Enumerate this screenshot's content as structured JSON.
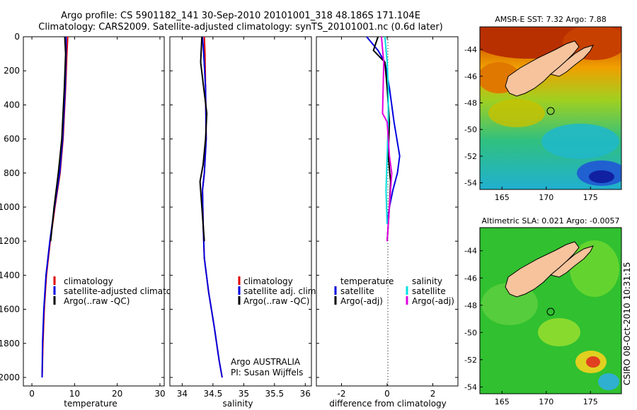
{
  "header": {
    "line1": "Argo profile: CS 5901182_141 30-Sep-2010 20101001_318 48.186S 171.104E",
    "line2": "Climatology: CARS2009. Satellite-adjusted climatology: synTS_20101001.nc (0.6d later)"
  },
  "chart_data": [
    {
      "type": "line",
      "id": "temperature",
      "xlabel": "temperature",
      "ylabel": "",
      "xlim": [
        -2,
        31
      ],
      "ylim": [
        0,
        2050
      ],
      "y_inverted": true,
      "xticks": [
        0,
        10,
        20,
        30
      ],
      "yticks": [
        0,
        200,
        400,
        600,
        800,
        1000,
        1200,
        1400,
        1600,
        1800,
        2000
      ],
      "legend": [
        "climatology",
        "satellite-adjusted climatology",
        "Argo(..raw -QC)"
      ],
      "series": [
        {
          "name": "climatology",
          "color": "#e00000",
          "x": [
            8.4,
            8.2,
            7.9,
            7.3,
            6.6,
            5.4,
            4.3,
            3.4,
            2.9,
            2.6,
            2.4
          ],
          "y": [
            0,
            100,
            300,
            600,
            800,
            1000,
            1200,
            1400,
            1600,
            1800,
            2000
          ]
        },
        {
          "name": "satellite-adjusted climatology",
          "color": "#0000e0",
          "x": [
            8.0,
            8.0,
            7.8,
            7.2,
            6.5,
            5.3,
            4.2,
            3.3,
            2.8,
            2.5,
            2.4
          ],
          "y": [
            0,
            100,
            300,
            600,
            800,
            1000,
            1200,
            1400,
            1600,
            1800,
            2000
          ]
        },
        {
          "name": "Argo(..raw -QC)",
          "color": "#000000",
          "x": [
            7.7,
            7.9,
            7.6,
            7.0,
            6.2,
            5.2,
            4.4
          ],
          "y": [
            0,
            100,
            300,
            600,
            800,
            1000,
            1200
          ]
        }
      ]
    },
    {
      "type": "line",
      "id": "salinity",
      "xlabel": "salinity",
      "ylabel": "",
      "xlim": [
        33.8,
        36.1
      ],
      "ylim": [
        0,
        2050
      ],
      "y_inverted": true,
      "xticks": [
        34,
        34.5,
        35,
        35.5,
        36
      ],
      "legend": [
        "climatology",
        "satellite adj. clim.",
        "Argo(..raw -QC)"
      ],
      "series": [
        {
          "name": "climatology",
          "color": "#e00000",
          "x": [
            34.36,
            34.37,
            34.38,
            34.39,
            34.36,
            34.33,
            34.34,
            34.36,
            34.43,
            34.52,
            34.6,
            34.65
          ],
          "y": [
            0,
            100,
            300,
            600,
            800,
            900,
            1100,
            1300,
            1500,
            1700,
            1900,
            2000
          ]
        },
        {
          "name": "satellite adj. clim.",
          "color": "#0000e0",
          "x": [
            34.33,
            34.35,
            34.38,
            34.39,
            34.36,
            34.33,
            34.34,
            34.36,
            34.43,
            34.52,
            34.6,
            34.65
          ],
          "y": [
            0,
            100,
            300,
            600,
            800,
            900,
            1100,
            1300,
            1500,
            1700,
            1900,
            2000
          ]
        },
        {
          "name": "Argo(..raw -QC)",
          "color": "#000000",
          "x": [
            34.32,
            34.3,
            34.35,
            34.4,
            34.38,
            34.34,
            34.29,
            34.32,
            34.36
          ],
          "y": [
            0,
            150,
            300,
            450,
            600,
            750,
            850,
            1000,
            1200
          ]
        }
      ],
      "annotations": [
        "Argo AUSTRALIA",
        "PI: Susan Wijffels"
      ]
    },
    {
      "type": "line",
      "id": "difference",
      "xlabel": "difference from climatology",
      "ylabel": "",
      "xlim": [
        -3.1,
        3.1
      ],
      "ylim": [
        0,
        2050
      ],
      "y_inverted": true,
      "xticks": [
        -2,
        0,
        2
      ],
      "legend": [
        "temperature",
        "satellite",
        "Argo(-adj)",
        "salinity",
        "satellite",
        "Argo(-adj)"
      ],
      "series": [
        {
          "name": "temperature satellite",
          "color": "#0000e0",
          "x": [
            -0.9,
            -0.4,
            -0.1,
            0.1,
            0.3,
            0.55,
            0.45,
            0.25,
            0.1,
            0.0
          ],
          "y": [
            0,
            80,
            150,
            300,
            500,
            700,
            800,
            900,
            1000,
            1100
          ]
        },
        {
          "name": "temperature Argo(-adj)",
          "color": "#000000",
          "x": [
            -0.4,
            -0.6,
            -0.1,
            0.0,
            0.1,
            0.05,
            0.15,
            0.1,
            0.0
          ],
          "y": [
            0,
            80,
            150,
            300,
            500,
            700,
            850,
            1000,
            1200
          ]
        },
        {
          "name": "salinity satellite",
          "color": "#00e0e0",
          "x": [
            -0.1,
            0.0,
            0.05,
            0.05,
            0.0,
            -0.05,
            0.0
          ],
          "y": [
            0,
            150,
            300,
            500,
            700,
            900,
            1100
          ]
        },
        {
          "name": "salinity Argo(-adj)",
          "color": "#e000e0",
          "x": [
            -0.25,
            -0.15,
            -0.2,
            0.0,
            0.1,
            0.2,
            0.1,
            0.0
          ],
          "y": [
            0,
            150,
            450,
            500,
            700,
            800,
            1000,
            1200
          ]
        }
      ]
    },
    {
      "type": "heatmap",
      "id": "sst_map",
      "title": "AMSR-E SST: 7.32 Argo: 7.88",
      "xlim": [
        162.5,
        178.5
      ],
      "ylim": [
        -54.5,
        -42.3
      ],
      "xticks": [
        165,
        170,
        175
      ],
      "yticks": [
        -44,
        -46,
        -48,
        -50,
        -52,
        -54
      ],
      "marker": {
        "lon": 171.104,
        "lat": -48.186
      }
    },
    {
      "type": "heatmap",
      "id": "sla_map",
      "title": "Altimetric SLA: 0.021 Argo: -0.0057",
      "xlim": [
        162.5,
        178.5
      ],
      "ylim": [
        -54.5,
        -42.3
      ],
      "xticks": [
        165,
        170,
        175
      ],
      "yticks": [
        -44,
        -46,
        -48,
        -50,
        -52,
        -54
      ],
      "marker": {
        "lon": 171.104,
        "lat": -48.186
      }
    }
  ],
  "side_label": "CSIRO 08-Oct-2010 10:31:15"
}
